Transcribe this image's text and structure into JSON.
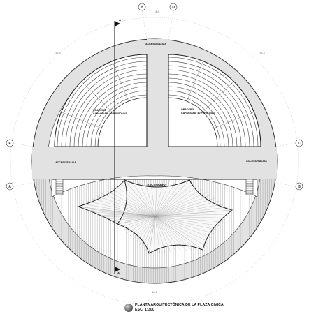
{
  "plan": {
    "labels": {
      "access_top": "ACCESO/SALIDA",
      "access_left": "ACCESO/SALIDA",
      "access_right": "ACCESO/SALIDA",
      "stage": ".ESCENARIO",
      "left_tier_name": "GRADERÍA",
      "left_tier_capacity": "CAPACIDAD: 80 PERSONAS",
      "right_tier_name": "GRADERÍA",
      "right_tier_capacity": "CAPACIDAD: 80 PERSONAS"
    },
    "grid_axes": {
      "top_left": "B",
      "top_right": "D",
      "left_upper": "F",
      "left_lower": "A",
      "right_upper": "C",
      "right_lower": "B"
    },
    "dimensions": {
      "top_gap": "4.4",
      "upper_left": "28.0",
      "upper_right": "28.0",
      "bottom": "36.0"
    },
    "section_marks": {
      "top": "A",
      "bottom": "A'"
    }
  },
  "title_block": {
    "title": "PLANTA ARQUITECTÓNICA DE LA PLAZA CIVICA",
    "scale": "ESC. 1:300"
  }
}
